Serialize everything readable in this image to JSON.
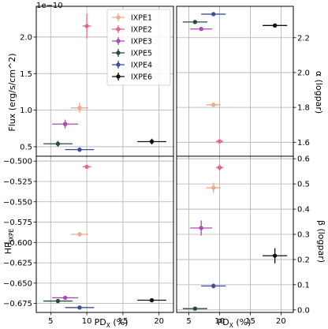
{
  "chart_data": {
    "type": "scatter",
    "shared_x": {
      "label_main": "PD",
      "label_sub": "X",
      "label_tail": " (%)",
      "range": [
        3,
        22
      ],
      "ticks": [
        5,
        10,
        15,
        20
      ]
    },
    "series_names": [
      "IXPE1",
      "IXPE2",
      "IXPE3",
      "IXPE5",
      "IXPE4",
      "IXPE6"
    ],
    "colors": [
      "#f0a98a",
      "#e0698e",
      "#a94cb2",
      "#1f4d40",
      "#3b4e9c",
      "#111111"
    ],
    "legend_location": "top-right of top-left panel",
    "grid": true,
    "panels": [
      {
        "id": "flux",
        "ylabel": "Flux (erg/s/cm^2)",
        "y_offset": "1e−10",
        "ylim": [
          0.37,
          2.42
        ],
        "yticks": [
          0.5,
          1.0,
          1.5,
          2.0
        ],
        "ytick_labels": [
          "0.5",
          "1.0",
          "1.5",
          "2.0"
        ],
        "y_axis_side": "left",
        "points": [
          {
            "x": 9.0,
            "xerr": 1.2,
            "y": 1.03,
            "yerr": 0.07
          },
          {
            "x": 10.0,
            "xerr": 0.6,
            "y": 2.15,
            "yerr": 0.17
          },
          {
            "x": 7.0,
            "xerr": 1.8,
            "y": 0.81,
            "yerr": 0.06
          },
          {
            "x": 6.0,
            "xerr": 2.0,
            "y": 0.54,
            "yerr": 0.04
          },
          {
            "x": 9.0,
            "xerr": 2.0,
            "y": 0.46,
            "yerr": 0.03
          },
          {
            "x": 19.0,
            "xerr": 2.0,
            "y": 0.57,
            "yerr": 0.04
          }
        ]
      },
      {
        "id": "alpha",
        "ylabel": "α (logpar)",
        "ylim": [
          1.52,
          2.38
        ],
        "yticks": [
          1.6,
          1.8,
          2.0,
          2.2
        ],
        "ytick_labels": [
          "1.6",
          "1.8",
          "2.0",
          "2.2"
        ],
        "y_axis_side": "right",
        "points": [
          {
            "x": 9.0,
            "xerr": 1.2,
            "y": 1.815,
            "yerr": 0.01
          },
          {
            "x": 10.0,
            "xerr": 0.6,
            "y": 1.605,
            "yerr": 0.01
          },
          {
            "x": 7.0,
            "xerr": 1.8,
            "y": 2.25,
            "yerr": 0.01
          },
          {
            "x": 6.0,
            "xerr": 2.0,
            "y": 2.29,
            "yerr": 0.01
          },
          {
            "x": 9.0,
            "xerr": 2.0,
            "y": 2.335,
            "yerr": 0.01
          },
          {
            "x": 19.0,
            "xerr": 2.0,
            "y": 2.27,
            "yerr": 0.01
          }
        ]
      },
      {
        "id": "hr",
        "ylabel_main": "HR",
        "ylabel_sub": "IXPE",
        "ylim": [
          -0.686,
          -0.494
        ],
        "yticks": [
          -0.5,
          -0.525,
          -0.55,
          -0.575,
          -0.6,
          -0.625,
          -0.65,
          -0.675
        ],
        "ytick_labels": [
          "−0.500",
          "−0.525",
          "−0.550",
          "−0.575",
          "−0.600",
          "−0.625",
          "−0.650",
          "−0.675"
        ],
        "y_axis_side": "left",
        "points": [
          {
            "x": 9.0,
            "xerr": 1.2,
            "y": -0.59,
            "yerr": 0.001
          },
          {
            "x": 10.0,
            "xerr": 0.6,
            "y": -0.507,
            "yerr": 0.001
          },
          {
            "x": 7.0,
            "xerr": 1.8,
            "y": -0.668,
            "yerr": 0.001
          },
          {
            "x": 6.0,
            "xerr": 2.0,
            "y": -0.672,
            "yerr": 0.001
          },
          {
            "x": 9.0,
            "xerr": 2.0,
            "y": -0.68,
            "yerr": 0.001
          },
          {
            "x": 19.0,
            "xerr": 2.0,
            "y": -0.671,
            "yerr": 0.001
          }
        ]
      },
      {
        "id": "beta",
        "ylabel": "β (logpar)",
        "ylim": [
          -0.01,
          0.61
        ],
        "yticks": [
          0.0,
          0.1,
          0.2,
          0.3,
          0.4,
          0.5,
          0.6
        ],
        "ytick_labels": [
          "0.0",
          "0.1",
          "0.2",
          "0.3",
          "0.4",
          "0.5",
          "0.6"
        ],
        "y_axis_side": "right",
        "points": [
          {
            "x": 9.0,
            "xerr": 1.2,
            "y": 0.485,
            "yerr": 0.02
          },
          {
            "x": 10.0,
            "xerr": 0.6,
            "y": 0.565,
            "yerr": 0.012
          },
          {
            "x": 7.0,
            "xerr": 1.8,
            "y": 0.325,
            "yerr": 0.03
          },
          {
            "x": 6.0,
            "xerr": 2.0,
            "y": 0.005,
            "yerr": 0.005
          },
          {
            "x": 9.0,
            "xerr": 2.0,
            "y": 0.095,
            "yerr": 0.01
          },
          {
            "x": 19.0,
            "xerr": 2.0,
            "y": 0.215,
            "yerr": 0.03
          }
        ]
      }
    ]
  }
}
